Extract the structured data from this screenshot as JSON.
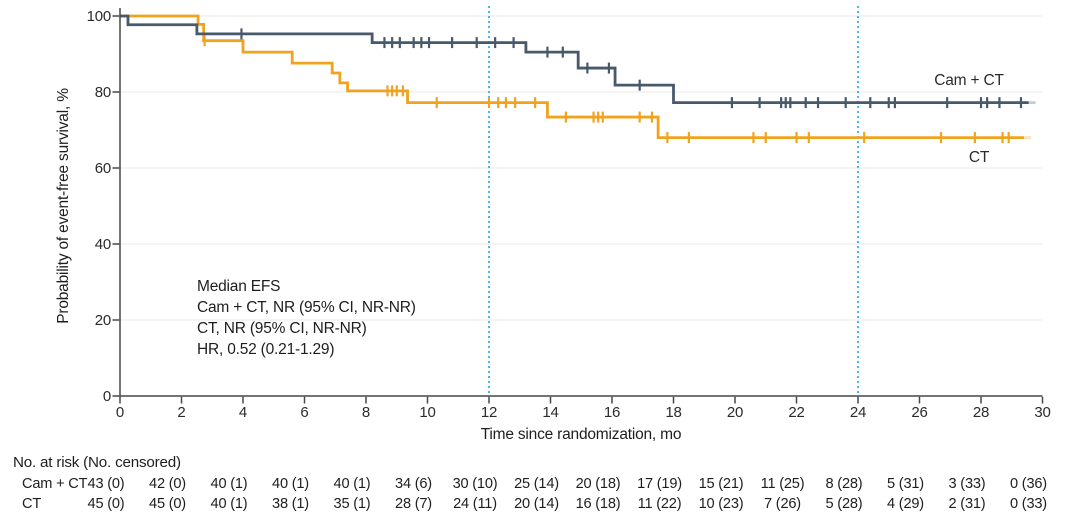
{
  "colors": {
    "cam_ct": "#47596B",
    "ct": "#F0A31E",
    "reference_line": "#45BCE8",
    "axis": "#474747",
    "gridline": "#EAEAEA",
    "text": "#1E1E1E"
  },
  "chart_data": {
    "type": "line",
    "subtype": "kaplan_meier_step",
    "title": "",
    "xlabel": "Time since randomization, mo",
    "ylabel": "Probability of event-free survival, %",
    "xlim": [
      0,
      30
    ],
    "ylim": [
      0,
      100
    ],
    "x_ticks": [
      0,
      2,
      4,
      6,
      8,
      10,
      12,
      14,
      16,
      18,
      20,
      22,
      24,
      26,
      28,
      30
    ],
    "y_ticks": [
      0,
      20,
      40,
      60,
      80,
      100
    ],
    "grid": "horizontal",
    "reference_lines_x": [
      12,
      24
    ],
    "annotation_lines": [
      "Median EFS",
      "Cam + CT, NR (95% CI, NR-NR)",
      "CT, NR (95% CI, NR-NR)",
      "HR, 0.52 (0.21-1.29)"
    ],
    "series": [
      {
        "name": "Cam + CT",
        "color_key": "cam_ct",
        "steps": [
          [
            0,
            100
          ],
          [
            0.26,
            97.7
          ],
          [
            2.5,
            95.3
          ],
          [
            8.2,
            93.0
          ],
          [
            13.2,
            90.5
          ],
          [
            14.9,
            86.3
          ],
          [
            16.1,
            81.8
          ],
          [
            18.0,
            77.2
          ],
          [
            29.55,
            77.2
          ]
        ],
        "censor_times": [
          3.95,
          8.6,
          8.85,
          9.1,
          9.55,
          9.8,
          10.05,
          10.8,
          11.6,
          12.2,
          12.8,
          13.9,
          14.4,
          15.2,
          15.9,
          16.9,
          19.9,
          20.8,
          21.5,
          21.65,
          21.8,
          22.3,
          22.7,
          23.6,
          24.4,
          25.0,
          25.2,
          26.9,
          28.0,
          28.2,
          28.6,
          29.3
        ],
        "end_t": 29.55
      },
      {
        "name": "CT",
        "color_key": "ct",
        "steps": [
          [
            0,
            100
          ],
          [
            2.54,
            97.8
          ],
          [
            2.72,
            93.5
          ],
          [
            4.0,
            90.5
          ],
          [
            5.6,
            87.6
          ],
          [
            6.9,
            85.0
          ],
          [
            7.15,
            82.4
          ],
          [
            7.4,
            80.3
          ],
          [
            9.35,
            77.2
          ],
          [
            13.9,
            73.4
          ],
          [
            17.5,
            68.0
          ],
          [
            29.4,
            68.0
          ]
        ],
        "censor_times": [
          2.75,
          8.7,
          8.85,
          9.0,
          9.2,
          10.3,
          12.0,
          12.3,
          12.55,
          12.85,
          13.5,
          14.5,
          15.4,
          15.55,
          15.7,
          16.9,
          17.3,
          17.8,
          18.5,
          20.6,
          21.0,
          22.0,
          22.4,
          24.2,
          26.7,
          27.8,
          28.7,
          28.9
        ],
        "end_t": 29.4
      }
    ],
    "risk_table": {
      "title": "No. at risk (No. censored)",
      "times": [
        0,
        2,
        4,
        6,
        8,
        10,
        12,
        14,
        16,
        18,
        20,
        22,
        24,
        26,
        28,
        30
      ],
      "rows": [
        {
          "label": "Cam + CT",
          "values": [
            "43 (0)",
            "42 (0)",
            "40 (1)",
            "40 (1)",
            "40 (1)",
            "34 (6)",
            "30 (10)",
            "25 (14)",
            "20 (18)",
            "17 (19)",
            "15 (21)",
            "11 (25)",
            "8 (28)",
            "5 (31)",
            "3 (33)",
            "0 (36)"
          ]
        },
        {
          "label": "CT",
          "values": [
            "45 (0)",
            "45 (0)",
            "40 (1)",
            "38 (1)",
            "35 (1)",
            "28 (7)",
            "24 (11)",
            "20 (14)",
            "16 (18)",
            "11 (22)",
            "10 (23)",
            "7 (26)",
            "5 (28)",
            "4 (29)",
            "2 (31)",
            "0 (33)"
          ]
        }
      ]
    }
  }
}
